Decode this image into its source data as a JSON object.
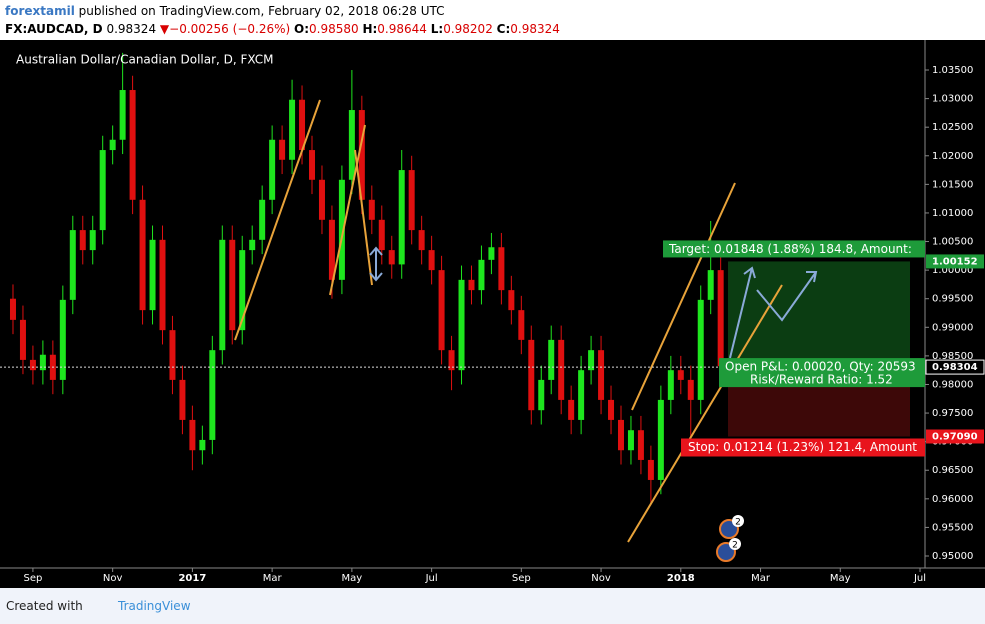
{
  "header": {
    "author": "forextamil",
    "published": "published on TradingView.com, February 02, 2018 06:28 UTC",
    "symbol": "FX:AUDCAD, D",
    "last": "0.98324",
    "arrow": "▼",
    "change": "−0.00256 (−0.26%)",
    "o_label": "O:",
    "o": "0.98580",
    "h_label": "H:",
    "h": "0.98644",
    "l_label": "L:",
    "l": "0.98202",
    "c_label": "C:",
    "c": "0.98324"
  },
  "chart_data": {
    "type": "candlestick",
    "title": "Australian Dollar/Canadian Dollar, D, FXCM",
    "categories": [
      null,
      null,
      "Sep",
      null,
      null,
      null,
      null,
      null,
      null,
      null,
      "Nov",
      null,
      null,
      null,
      null,
      null,
      null,
      null,
      "2017",
      null,
      null,
      null,
      null,
      null,
      null,
      null,
      "Mar",
      null,
      null,
      null,
      null,
      null,
      null,
      null,
      "May",
      null,
      null,
      null,
      null,
      null,
      null,
      null,
      "Jul",
      null,
      null,
      null,
      null,
      null,
      null,
      null,
      null,
      "Sep",
      null,
      null,
      null,
      null,
      null,
      null,
      null,
      "Nov",
      null,
      null,
      null,
      null,
      null,
      null,
      null,
      "2018",
      null,
      null,
      null,
      null,
      null,
      null,
      null,
      "Mar",
      null,
      null,
      null,
      null,
      null,
      null,
      null,
      "May",
      null,
      null,
      null,
      null,
      null,
      null,
      null,
      "Jul"
    ],
    "open": [
      0.995,
      0.9913,
      0.9843,
      0.9825,
      0.9852,
      0.9808,
      0.9948,
      1.007,
      1.0035,
      1.007,
      1.021,
      1.0228,
      1.0315,
      1.0123,
      0.993,
      1.0053,
      0.9895,
      0.9808,
      0.9738,
      0.9685,
      0.9703,
      0.986,
      1.0053,
      0.9895,
      1.0035,
      1.0053,
      1.0123,
      1.0228,
      1.0193,
      1.0298,
      1.021,
      1.0158,
      1.0088,
      0.9983,
      1.0158,
      1.028,
      1.0123,
      1.0088,
      1.0035,
      1.001,
      1.0175,
      1.007,
      1.0035,
      1.0,
      0.986,
      0.9825,
      0.9983,
      0.9965,
      1.0018,
      1.004,
      0.9965,
      0.993,
      0.9878,
      0.9755,
      0.9808,
      0.9878,
      0.9773,
      0.9738,
      0.9825,
      0.986,
      0.9773,
      0.9738,
      0.9685,
      0.972,
      0.9668,
      0.9633,
      0.9773,
      0.9825,
      0.9808,
      0.9773,
      0.9948,
      1.0,
      null,
      null,
      null,
      null,
      null,
      null,
      null,
      null,
      null,
      null,
      null,
      null,
      null,
      null,
      null,
      null,
      null,
      null,
      null,
      null
    ],
    "high": [
      0.9975,
      0.9938,
      0.9868,
      0.9877,
      0.9877,
      0.9973,
      1.0095,
      1.0095,
      1.0095,
      1.0235,
      1.0253,
      1.038,
      1.034,
      1.0148,
      1.0078,
      1.0078,
      0.992,
      0.9833,
      0.9763,
      0.9728,
      0.9885,
      1.0078,
      1.0078,
      1.006,
      1.0078,
      1.0148,
      1.0253,
      1.0253,
      1.0333,
      1.0323,
      1.0235,
      1.0183,
      1.0113,
      1.0183,
      1.035,
      1.0305,
      1.0148,
      1.0113,
      1.006,
      1.021,
      1.02,
      1.0095,
      1.006,
      1.0025,
      0.9885,
      1.0008,
      1.0008,
      1.0043,
      1.0065,
      1.0065,
      0.999,
      0.9955,
      0.9903,
      0.9833,
      0.9903,
      0.9903,
      0.9798,
      0.985,
      0.9885,
      0.9885,
      0.9798,
      0.9763,
      0.9745,
      0.9745,
      0.9693,
      0.9798,
      0.985,
      0.985,
      0.9833,
      0.9973,
      1.0086,
      1.0025,
      null,
      null,
      null,
      null,
      null,
      null,
      null,
      null,
      null,
      null,
      null,
      null,
      null,
      null,
      null,
      null,
      null,
      null,
      null,
      null
    ],
    "low": [
      0.9888,
      0.9818,
      0.98,
      0.98,
      0.9783,
      0.9783,
      0.9923,
      1.001,
      1.001,
      1.0045,
      1.0185,
      1.0203,
      1.0098,
      0.9905,
      0.9905,
      0.987,
      0.9783,
      0.9713,
      0.965,
      0.966,
      0.9678,
      0.9835,
      0.987,
      0.987,
      1.001,
      1.0028,
      1.0098,
      1.0168,
      1.0168,
      1.0185,
      1.0133,
      1.0063,
      0.995,
      0.9958,
      1.0133,
      1.0098,
      1.0063,
      1.001,
      0.9985,
      0.9985,
      1.0045,
      1.001,
      0.9975,
      0.9835,
      0.979,
      0.98,
      0.994,
      0.994,
      0.9993,
      0.994,
      0.9905,
      0.9853,
      0.973,
      0.973,
      0.9783,
      0.9748,
      0.9713,
      0.9713,
      0.98,
      0.9748,
      0.9713,
      0.966,
      0.966,
      0.9643,
      0.9589,
      0.9608,
      0.9748,
      0.9783,
      0.9709,
      0.9748,
      0.9923,
      0.982,
      null,
      null,
      null,
      null,
      null,
      null,
      null,
      null,
      null,
      null,
      null,
      null,
      null,
      null,
      null,
      null,
      null,
      null,
      null,
      null
    ],
    "close": [
      0.9913,
      0.9843,
      0.9825,
      0.9852,
      0.9808,
      0.9948,
      1.007,
      1.0035,
      1.007,
      1.021,
      1.0228,
      1.0315,
      1.0123,
      0.993,
      1.0053,
      0.9895,
      0.9808,
      0.9738,
      0.9685,
      0.9703,
      0.986,
      1.0053,
      0.9895,
      1.0035,
      1.0053,
      1.0123,
      1.0228,
      1.0193,
      1.0298,
      1.021,
      1.0158,
      1.0088,
      0.9983,
      1.0158,
      1.028,
      1.0123,
      1.0088,
      1.0035,
      1.001,
      1.0175,
      1.007,
      1.0035,
      1.0,
      0.986,
      0.9825,
      0.9983,
      0.9965,
      1.0018,
      1.004,
      0.9965,
      0.993,
      0.9878,
      0.9755,
      0.9808,
      0.9878,
      0.9773,
      0.9738,
      0.9825,
      0.986,
      0.9773,
      0.9738,
      0.9685,
      0.972,
      0.9668,
      0.9633,
      0.9773,
      0.9825,
      0.9808,
      0.9773,
      0.9948,
      1.0,
      0.9832,
      null,
      null,
      null,
      null,
      null,
      null,
      null,
      null,
      null,
      null,
      null,
      null,
      null,
      null,
      null,
      null,
      null,
      null,
      null,
      null
    ],
    "up_color": "#1ee61e",
    "down_color": "#e01010",
    "ylim": [
      0.9479,
      1.0399
    ],
    "yticks": [
      {
        "value": 0.95,
        "label": "0.95000"
      },
      {
        "value": 0.955,
        "label": "0.95500"
      },
      {
        "value": 0.96,
        "label": "0.96000"
      },
      {
        "value": 0.965,
        "label": "0.96500"
      },
      {
        "value": 0.97,
        "label": "0.97000"
      },
      {
        "value": 0.975,
        "label": "0.97500"
      },
      {
        "value": 0.98,
        "label": "0.98000"
      },
      {
        "value": 0.985,
        "label": "0.98500"
      },
      {
        "value": 0.99,
        "label": "0.99000"
      },
      {
        "value": 0.995,
        "label": "0.99500"
      },
      {
        "value": 1.0,
        "label": "1.00000"
      },
      {
        "value": 1.005,
        "label": "1.00500"
      },
      {
        "value": 1.01,
        "label": "1.01000"
      },
      {
        "value": 1.015,
        "label": "1.01500"
      },
      {
        "value": 1.02,
        "label": "1.02000"
      },
      {
        "value": 1.025,
        "label": "1.02500"
      },
      {
        "value": 1.03,
        "label": "1.03000"
      },
      {
        "value": 1.035,
        "label": "1.03500"
      }
    ],
    "price_tags": [
      {
        "value": 1.00152,
        "label": "1.00152",
        "color": "#1e9b3a"
      },
      {
        "value": 0.98304,
        "label": "0.98304",
        "color": "#000000"
      },
      {
        "value": 0.9709,
        "label": "0.97090",
        "color": "#e8141c"
      }
    ],
    "position": {
      "entry": 0.98304,
      "target": 1.00152,
      "stop": 0.9709,
      "target_label": "Target: 0.01848 (1.88%) 184.8, Amount:",
      "stop_label": "Stop: 0.01214 (1.23%) 121.4, Amount",
      "pnl_label": "Open P&L: 0.00020, Qty: 20593",
      "rr_label": "Risk/Reward Ratio: 1.52"
    },
    "events": [
      "2",
      "2"
    ]
  },
  "footer": {
    "created": "Created with",
    "brand": "TradingView"
  }
}
